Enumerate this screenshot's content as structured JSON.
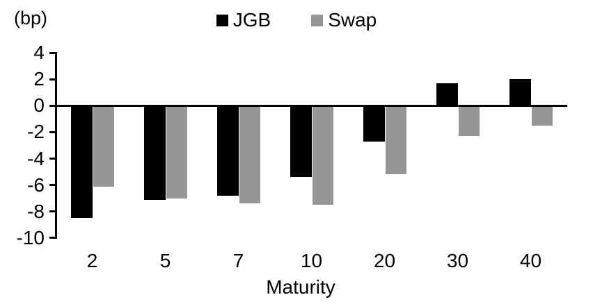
{
  "chart_data": {
    "type": "bar",
    "title": "",
    "unit_label": "(bp)",
    "xlabel": "Maturity",
    "categories": [
      "2",
      "5",
      "7",
      "10",
      "20",
      "30",
      "40"
    ],
    "series": [
      {
        "name": "JGB",
        "color": "#000000",
        "values": [
          -8.5,
          -7.1,
          -6.8,
          -5.4,
          -2.7,
          1.7,
          2.0
        ]
      },
      {
        "name": "Swap",
        "color": "#969696",
        "values": [
          -6.1,
          -7.0,
          -7.4,
          -7.5,
          -5.2,
          -2.3,
          -1.5
        ]
      }
    ],
    "y_ticks": [
      4,
      2,
      0,
      -2,
      -4,
      -6,
      -8,
      -10
    ],
    "ylim": [
      -10,
      4
    ],
    "grid": false,
    "legend_position": "top",
    "axis_color": "#000000",
    "background": "#ffffff"
  }
}
